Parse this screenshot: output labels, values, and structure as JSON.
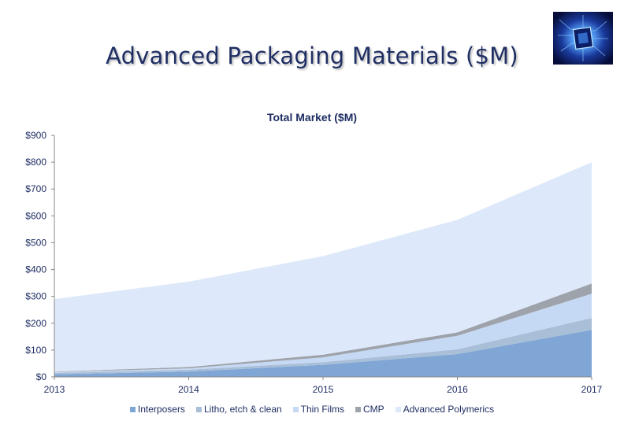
{
  "slide": {
    "title": "Advanced Packaging Materials ($M)",
    "thumbnail_icon": "circuit-chip-icon"
  },
  "chart_data": {
    "type": "area",
    "stacked": true,
    "title": "Total Market ($M)",
    "xlabel": "",
    "ylabel": "",
    "x": [
      "2013",
      "2014",
      "2015",
      "2016",
      "2017"
    ],
    "ylim": [
      0,
      900
    ],
    "yticks": [
      "$0",
      "$100",
      "$200",
      "$300",
      "$400",
      "$500",
      "$600",
      "$700",
      "$800",
      "$900"
    ],
    "grid": false,
    "legend_position": "bottom",
    "series": [
      {
        "name": "Interposers",
        "color": "#7fa6d4",
        "values": [
          10,
          20,
          45,
          85,
          175
        ]
      },
      {
        "name": "Litho, etch & clean",
        "color": "#a9bed7",
        "values": [
          5,
          7,
          10,
          18,
          45
        ]
      },
      {
        "name": "Thin Films",
        "color": "#c6d9f4",
        "values": [
          3,
          5,
          18,
          50,
          90
        ]
      },
      {
        "name": "CMP",
        "color": "#9ea3ab",
        "values": [
          2,
          5,
          10,
          13,
          38
        ]
      },
      {
        "name": "Advanced Polymerics",
        "color": "#dde9fa",
        "values": [
          270,
          318,
          367,
          419,
          452
        ]
      }
    ]
  }
}
